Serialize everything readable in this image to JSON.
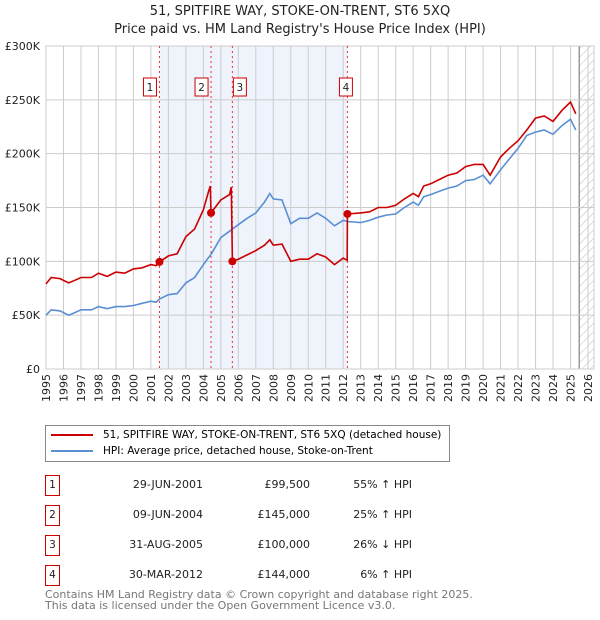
{
  "chart_data": {
    "type": "line",
    "title": "51, SPITFIRE WAY, STOKE-ON-TRENT, ST6 5XQ",
    "subtitle": "Price paid vs. HM Land Registry's House Price Index (HPI)",
    "xlabel": "",
    "ylabel": "",
    "xlim": [
      1995,
      2026
    ],
    "ylim": [
      0,
      300000
    ],
    "y_ticks": [
      {
        "v": 0,
        "label": "£0"
      },
      {
        "v": 50,
        "label": "£50K"
      },
      {
        "v": 100,
        "label": "£100K"
      },
      {
        "v": 150,
        "label": "£150K"
      },
      {
        "v": 200,
        "label": "£200K"
      },
      {
        "v": 250,
        "label": "£250K"
      },
      {
        "v": 300,
        "label": "£300K"
      }
    ],
    "x_ticks": [
      "1995",
      "1996",
      "1997",
      "1998",
      "1999",
      "2000",
      "2001",
      "2002",
      "2003",
      "2004",
      "2005",
      "2006",
      "2007",
      "2008",
      "2009",
      "2010",
      "2011",
      "2012",
      "2013",
      "2014",
      "2015",
      "2016",
      "2017",
      "2018",
      "2019",
      "2020",
      "2021",
      "2022",
      "2023",
      "2024",
      "2025",
      "2026"
    ],
    "shaded_range": [
      2001.49,
      2012.24
    ],
    "forecast_start": 2025.5,
    "series": [
      {
        "name": "51, SPITFIRE WAY, STOKE-ON-TRENT, ST6 5XQ (detached house)",
        "color": "#cc0000",
        "points": [
          [
            1995,
            79
          ],
          [
            1995.3,
            85
          ],
          [
            1995.8,
            84
          ],
          [
            1996.3,
            80
          ],
          [
            1996.6,
            82
          ],
          [
            1997,
            85
          ],
          [
            1997.6,
            85
          ],
          [
            1998,
            89
          ],
          [
            1998.5,
            86
          ],
          [
            1999,
            90
          ],
          [
            1999.5,
            89
          ],
          [
            2000,
            93
          ],
          [
            2000.5,
            94
          ],
          [
            2001,
            97
          ],
          [
            2001.3,
            96
          ],
          [
            2001.49,
            99.5
          ],
          [
            2002,
            105
          ],
          [
            2002.5,
            107
          ],
          [
            2003,
            123
          ],
          [
            2003.5,
            130
          ],
          [
            2004,
            148
          ],
          [
            2004.3,
            165
          ],
          [
            2004.4,
            170
          ],
          [
            2004.44,
            145
          ],
          [
            2005,
            157
          ],
          [
            2005.5,
            162
          ],
          [
            2005.6,
            169
          ],
          [
            2005.66,
            100
          ],
          [
            2006,
            102
          ],
          [
            2006.5,
            106
          ],
          [
            2007,
            110
          ],
          [
            2007.5,
            115
          ],
          [
            2007.8,
            120
          ],
          [
            2008,
            115
          ],
          [
            2008.5,
            116
          ],
          [
            2009,
            100
          ],
          [
            2009.5,
            102
          ],
          [
            2010,
            102
          ],
          [
            2010.5,
            107
          ],
          [
            2011,
            104
          ],
          [
            2011.5,
            97
          ],
          [
            2012,
            103
          ],
          [
            2012.23,
            101
          ],
          [
            2012.24,
            144
          ],
          [
            2013,
            145
          ],
          [
            2013.5,
            146
          ],
          [
            2014,
            150
          ],
          [
            2014.5,
            150
          ],
          [
            2015,
            152
          ],
          [
            2015.5,
            158
          ],
          [
            2016,
            163
          ],
          [
            2016.3,
            160
          ],
          [
            2016.6,
            170
          ],
          [
            2017,
            172
          ],
          [
            2017.5,
            176
          ],
          [
            2018,
            180
          ],
          [
            2018.5,
            182
          ],
          [
            2019,
            188
          ],
          [
            2019.5,
            190
          ],
          [
            2020,
            190
          ],
          [
            2020.4,
            180
          ],
          [
            2021,
            197
          ],
          [
            2021.5,
            205
          ],
          [
            2022,
            212
          ],
          [
            2022.5,
            222
          ],
          [
            2023,
            233
          ],
          [
            2023.5,
            235
          ],
          [
            2024,
            230
          ],
          [
            2024.5,
            240
          ],
          [
            2025,
            248
          ],
          [
            2025.3,
            237
          ]
        ]
      },
      {
        "name": "HPI: Average price, detached house, Stoke-on-Trent",
        "color": "#5b8fd4",
        "points": [
          [
            1995,
            50
          ],
          [
            1995.3,
            55
          ],
          [
            1995.8,
            54
          ],
          [
            1996.3,
            50
          ],
          [
            1996.6,
            52
          ],
          [
            1997,
            55
          ],
          [
            1997.6,
            55
          ],
          [
            1998,
            58
          ],
          [
            1998.5,
            56
          ],
          [
            1999,
            58
          ],
          [
            1999.5,
            58
          ],
          [
            2000,
            59
          ],
          [
            2000.5,
            61
          ],
          [
            2001,
            63
          ],
          [
            2001.3,
            62
          ],
          [
            2001.49,
            65
          ],
          [
            2002,
            69
          ],
          [
            2002.5,
            70
          ],
          [
            2003,
            80
          ],
          [
            2003.5,
            85
          ],
          [
            2004,
            97
          ],
          [
            2004.5,
            108
          ],
          [
            2005,
            122
          ],
          [
            2005.5,
            128
          ],
          [
            2006,
            134
          ],
          [
            2006.5,
            140
          ],
          [
            2007,
            145
          ],
          [
            2007.5,
            155
          ],
          [
            2007.8,
            163
          ],
          [
            2008,
            158
          ],
          [
            2008.5,
            157
          ],
          [
            2009,
            135
          ],
          [
            2009.5,
            140
          ],
          [
            2010,
            140
          ],
          [
            2010.5,
            145
          ],
          [
            2011,
            140
          ],
          [
            2011.5,
            133
          ],
          [
            2012,
            138
          ],
          [
            2012.24,
            137
          ],
          [
            2013,
            136
          ],
          [
            2013.5,
            138
          ],
          [
            2014,
            141
          ],
          [
            2014.5,
            143
          ],
          [
            2015,
            144
          ],
          [
            2015.5,
            150
          ],
          [
            2016,
            155
          ],
          [
            2016.3,
            152
          ],
          [
            2016.6,
            160
          ],
          [
            2017,
            162
          ],
          [
            2017.5,
            165
          ],
          [
            2018,
            168
          ],
          [
            2018.5,
            170
          ],
          [
            2019,
            175
          ],
          [
            2019.5,
            176
          ],
          [
            2020,
            180
          ],
          [
            2020.4,
            172
          ],
          [
            2021,
            185
          ],
          [
            2021.5,
            195
          ],
          [
            2022,
            205
          ],
          [
            2022.5,
            217
          ],
          [
            2023,
            220
          ],
          [
            2023.5,
            222
          ],
          [
            2024,
            218
          ],
          [
            2024.5,
            226
          ],
          [
            2025,
            232
          ],
          [
            2025.3,
            222
          ]
        ]
      }
    ],
    "sales": [
      {
        "label": "1",
        "x": 2001.49,
        "y": 99.5
      },
      {
        "label": "2",
        "x": 2004.44,
        "y": 145
      },
      {
        "label": "3",
        "x": 2005.66,
        "y": 100
      },
      {
        "label": "4",
        "x": 2012.24,
        "y": 144
      }
    ]
  },
  "legend": {
    "property": "51, SPITFIRE WAY, STOKE-ON-TRENT, ST6 5XQ (detached house)",
    "hpi": "HPI: Average price, detached house, Stoke-on-Trent"
  },
  "transactions": [
    {
      "num": "1",
      "date": "29-JUN-2001",
      "price": "£99,500",
      "hpi": "55% ↑ HPI"
    },
    {
      "num": "2",
      "date": "09-JUN-2004",
      "price": "£145,000",
      "hpi": "25% ↑ HPI"
    },
    {
      "num": "3",
      "date": "31-AUG-2005",
      "price": "£100,000",
      "hpi": "26% ↓ HPI"
    },
    {
      "num": "4",
      "date": "30-MAR-2012",
      "price": "£144,000",
      "hpi": "6% ↑ HPI"
    }
  ],
  "footer": {
    "line1": "Contains HM Land Registry data © Crown copyright and database right 2025.",
    "line2": "This data is licensed under the Open Government Licence v3.0."
  }
}
